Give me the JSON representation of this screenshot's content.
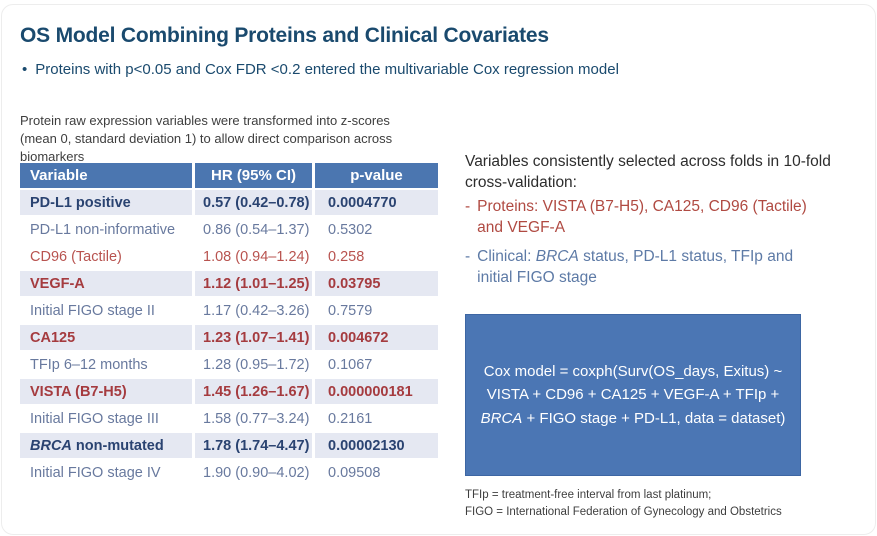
{
  "slide": {
    "title": "OS Model Combining Proteins and Clinical Covariates",
    "bullet_glyph": "•",
    "subtitle_bullet": "Proteins with p<0.05 and Cox FDR <0.2 entered the multivariable Cox regression model"
  },
  "note_lines": [
    "Protein raw expression variables were transformed into z-scores",
    "(mean 0, standard deviation 1) to allow direct comparison across biomarkers"
  ],
  "table": {
    "headers": [
      "Variable",
      "HR (95% CI)",
      "p-value"
    ],
    "rows": [
      {
        "variable": "PD-L1 positive",
        "hr": "0.57 (0.42–0.78)",
        "p": "0.0004770",
        "style": "navy",
        "bold": true,
        "highlight": true
      },
      {
        "variable": "PD-L1 non-informative",
        "hr": "0.86 (0.54–1.37)",
        "p": "0.5302",
        "style": "blue",
        "bold": false,
        "highlight": false
      },
      {
        "variable": "CD96 (Tactile)",
        "hr": "1.08 (0.94–1.24)",
        "p": "0.258",
        "style": "red",
        "bold": false,
        "highlight": false
      },
      {
        "variable": "VEGF-A",
        "hr": "1.12 (1.01–1.25)",
        "p": "0.03795",
        "style": "red",
        "bold": true,
        "highlight": true
      },
      {
        "variable": "Initial FIGO stage II",
        "hr": "1.17 (0.42–3.26)",
        "p": "0.7579",
        "style": "blue",
        "bold": false,
        "highlight": false
      },
      {
        "variable": "CA125",
        "hr": "1.23 (1.07–1.41)",
        "p": "0.004672",
        "style": "red",
        "bold": true,
        "highlight": true
      },
      {
        "variable": "TFIp 6–12 months",
        "hr": "1.28 (0.95–1.72)",
        "p": "0.1067",
        "style": "blue",
        "bold": false,
        "highlight": false
      },
      {
        "variable": "VISTA (B7-H5)",
        "hr": "1.45 (1.26–1.67)",
        "p": "0.000000181",
        "style": "red",
        "bold": true,
        "highlight": true
      },
      {
        "variable": "Initial FIGO stage III",
        "hr": "1.58 (0.77–3.24)",
        "p": "0.2161",
        "style": "blue",
        "bold": false,
        "highlight": false
      },
      {
        "variable_segments": [
          {
            "text": "BRCA",
            "italic": true
          },
          {
            "text": " non-mutated"
          }
        ],
        "hr": "1.78 (1.74–4.47)",
        "p": "0.00002130",
        "style": "navy",
        "bold": true,
        "highlight": true
      },
      {
        "variable": "Initial FIGO stage IV",
        "hr": "1.90 (0.90–4.02)",
        "p": "0.09508",
        "style": "blue",
        "bold": false,
        "highlight": false
      }
    ]
  },
  "right_panel": {
    "heading_lines": [
      "Variables consistently selected across folds in 10-fold",
      "cross-validation:"
    ],
    "bullets": [
      {
        "marker": "-",
        "color": "red",
        "lines": [
          "Proteins: VISTA (B7-H5), CA125, CD96 (Tactile)",
          "and VEGF-A"
        ]
      },
      {
        "marker": "-",
        "color": "blue",
        "lines": [
          [
            {
              "text": "Clinical: "
            },
            {
              "text": "BRCA",
              "italic": true
            },
            {
              "text": " status, PD-L1 status, TFIp and"
            }
          ],
          "initial FIGO stage"
        ]
      }
    ],
    "cox_box_lines": [
      "Cox model = coxph(Surv(OS_days, Exitus) ~",
      "VISTA + CD96 + CA125 + VEGF-A + TFIp +",
      [
        {
          "text": "BRCA",
          "italic": true
        },
        {
          "text": " + FIGO stage + PD-L1, data = dataset)"
        }
      ]
    ],
    "footnote_lines": [
      "TFIp = treatment-free interval from last platinum;",
      "FIGO = International Federation of Gynecology and Obstetrics"
    ]
  },
  "colors": {
    "title_blue": "#1a4a6e",
    "table_header_bg": "#4b76b0",
    "cox_box_bg": "#4b76b4",
    "highlight_row_bg": "#e5e8f2",
    "navy_text": "#2a4371",
    "steel_blue_text": "#68799e",
    "red_text": "#b8534f",
    "red_bold_text": "#a53b3f",
    "red_bullet": "#b04a42",
    "blue_bullet": "#5d7aa6",
    "note_text": "#3e3e3e"
  }
}
